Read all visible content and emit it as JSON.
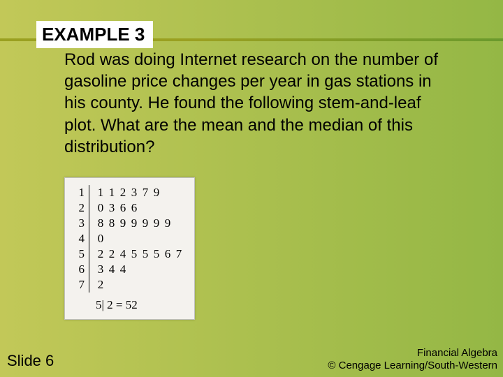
{
  "colors": {
    "bg_gradient_left": "#c2c858",
    "bg_gradient_right": "#94b745",
    "rule_dark": "#9aa021",
    "rule_light": "#6a9a2d",
    "example_bg": "#ffffff",
    "example_text": "#000000",
    "body_text": "#000000",
    "footer_text": "#000000",
    "stemleaf_bg": "#f4f2ee",
    "stemleaf_border": "#c0c0c0"
  },
  "typography": {
    "example_fontsize": 26,
    "body_fontsize": 24,
    "stemleaf_fontsize": 17,
    "slidenum_fontsize": 22,
    "footer_fontsize": 15
  },
  "header": {
    "example_label": "EXAMPLE 3"
  },
  "body": {
    "text": "Rod was doing Internet research on the number of gasoline price changes per year in gas stations in his county. He found the following stem-and-leaf plot. What are the mean and the median of this distribution?"
  },
  "stemleaf": {
    "rows": [
      {
        "stem": "1",
        "leaves": [
          "1",
          "1",
          "2",
          "3",
          "7",
          "9"
        ]
      },
      {
        "stem": "2",
        "leaves": [
          "0",
          "3",
          "6",
          "6"
        ]
      },
      {
        "stem": "3",
        "leaves": [
          "8",
          "8",
          "9",
          "9",
          "9",
          "9",
          "9"
        ]
      },
      {
        "stem": "4",
        "leaves": [
          "0"
        ]
      },
      {
        "stem": "5",
        "leaves": [
          "2",
          "2",
          "4",
          "5",
          "5",
          "5",
          "6",
          "7"
        ]
      },
      {
        "stem": "6",
        "leaves": [
          "3",
          "4",
          "4"
        ]
      },
      {
        "stem": "7",
        "leaves": [
          "2"
        ]
      }
    ],
    "legend": "5| 2 = 52"
  },
  "footer": {
    "slide_label": "Slide 6",
    "line1": "Financial Algebra",
    "line2": "© Cengage Learning/South-Western"
  }
}
